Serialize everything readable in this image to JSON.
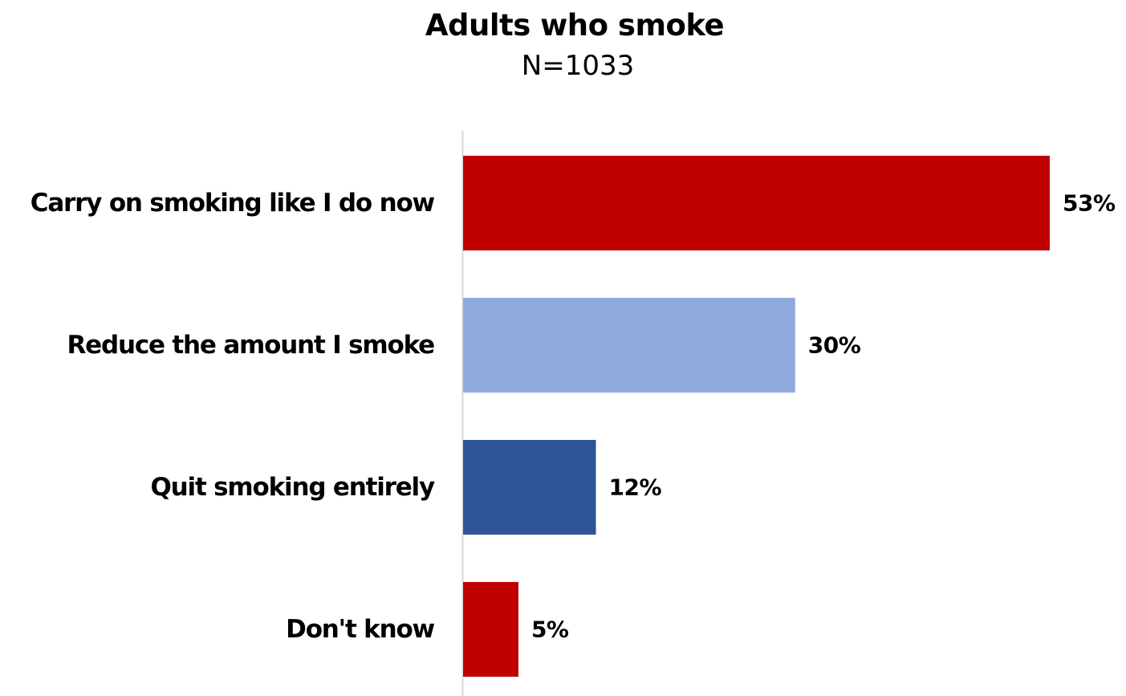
{
  "chart_data": {
    "type": "bar",
    "orientation": "horizontal",
    "title": "Adults who smoke",
    "subtitle": "N=1033",
    "categories": [
      "Carry on smoking like I do now",
      "Reduce the amount I smoke",
      "Quit smoking entirely",
      "Don't know"
    ],
    "values": [
      53,
      30,
      12,
      5
    ],
    "value_labels": [
      "53%",
      "30%",
      "12%",
      "5%"
    ],
    "bar_colors": [
      "#c00000",
      "#8faadc",
      "#2f5597",
      "#c00000"
    ],
    "xlim": [
      0,
      53
    ],
    "grid": false,
    "legend": "none"
  }
}
